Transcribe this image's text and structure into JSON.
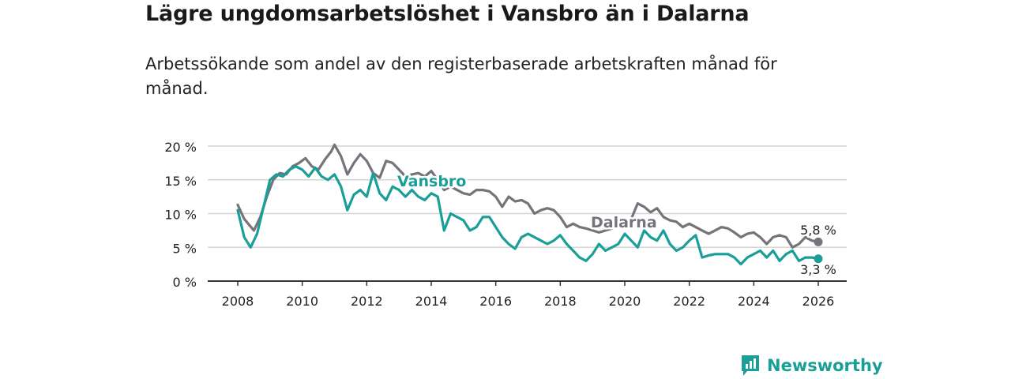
{
  "title": "Lägre ungdomsarbetslöshet i Vansbro än i Dalarna",
  "subtitle": "Arbetssökande som andel av den registerbaserade arbetskraften månad för månad.",
  "brand": "Newsworthy",
  "colors": {
    "vansbro": "#1a9e98",
    "dalarna": "#76737a",
    "grid": "#d4d4d4",
    "axis": "#333333"
  },
  "chart_data": {
    "type": "line",
    "title": "Lägre ungdomsarbetslöshet i Vansbro än i Dalarna",
    "xlabel": "",
    "ylabel": "",
    "xlim": [
      2007.8,
      2026.5
    ],
    "ylim": [
      0,
      20
    ],
    "x_ticks": [
      2008,
      2010,
      2012,
      2014,
      2016,
      2018,
      2020,
      2022,
      2024,
      2026
    ],
    "x_tick_labels": [
      "2008",
      "2010",
      "2012",
      "2014",
      "2016",
      "2018",
      "2020",
      "2022",
      "2024",
      "2026"
    ],
    "y_ticks": [
      0,
      5,
      10,
      15,
      20
    ],
    "y_tick_labels": [
      "0 %",
      "5 %",
      "10 %",
      "15 %",
      "20 %"
    ],
    "series": [
      {
        "name": "Dalarna",
        "label": "Dalarna",
        "end_label": "5,8 %",
        "x": [
          2008.0,
          2008.2,
          2008.5,
          2008.7,
          2008.9,
          2009.1,
          2009.3,
          2009.5,
          2009.7,
          2009.9,
          2010.1,
          2010.3,
          2010.5,
          2010.7,
          2010.9,
          2011.0,
          2011.2,
          2011.4,
          2011.6,
          2011.8,
          2012.0,
          2012.2,
          2012.4,
          2012.6,
          2012.8,
          2013.0,
          2013.2,
          2013.4,
          2013.6,
          2013.8,
          2014.0,
          2014.2,
          2014.4,
          2014.6,
          2014.8,
          2015.0,
          2015.2,
          2015.4,
          2015.6,
          2015.8,
          2016.0,
          2016.2,
          2016.4,
          2016.6,
          2016.8,
          2017.0,
          2017.2,
          2017.4,
          2017.6,
          2017.8,
          2018.0,
          2018.2,
          2018.4,
          2018.6,
          2018.8,
          2019.0,
          2019.2,
          2019.4,
          2019.6,
          2019.8,
          2020.0,
          2020.2,
          2020.4,
          2020.6,
          2020.8,
          2021.0,
          2021.2,
          2021.4,
          2021.6,
          2021.8,
          2022.0,
          2022.2,
          2022.4,
          2022.6,
          2022.8,
          2023.0,
          2023.2,
          2023.4,
          2023.6,
          2023.8,
          2024.0,
          2024.2,
          2024.4,
          2024.6,
          2024.8,
          2025.0,
          2025.2,
          2025.4,
          2025.6,
          2025.8,
          2026.0
        ],
        "values": [
          11.3,
          9.2,
          7.5,
          9.5,
          12.5,
          15.0,
          16.0,
          15.8,
          17.0,
          17.5,
          18.2,
          17.0,
          16.5,
          18.0,
          19.2,
          20.2,
          18.5,
          15.8,
          17.5,
          18.8,
          17.8,
          16.0,
          15.3,
          17.8,
          17.5,
          16.5,
          15.5,
          15.8,
          16.0,
          15.5,
          16.3,
          15.0,
          13.5,
          14.0,
          13.5,
          13.0,
          12.8,
          13.5,
          13.5,
          13.3,
          12.5,
          11.0,
          12.5,
          11.8,
          12.0,
          11.5,
          10.0,
          10.5,
          10.8,
          10.5,
          9.5,
          8.0,
          8.5,
          8.0,
          7.8,
          7.5,
          7.2,
          7.5,
          7.8,
          8.2,
          8.5,
          9.2,
          11.5,
          11.0,
          10.2,
          10.8,
          9.5,
          9.0,
          8.8,
          8.0,
          8.5,
          8.0,
          7.5,
          7.0,
          7.5,
          8.0,
          7.8,
          7.2,
          6.5,
          7.0,
          7.2,
          6.5,
          5.5,
          6.5,
          6.8,
          6.5,
          5.0,
          5.5,
          6.5,
          6.0,
          5.8
        ]
      },
      {
        "name": "Vansbro",
        "label": "Vansbro",
        "end_label": "3,3 %",
        "x": [
          2008.0,
          2008.2,
          2008.4,
          2008.6,
          2008.8,
          2009.0,
          2009.2,
          2009.4,
          2009.6,
          2009.8,
          2010.0,
          2010.2,
          2010.4,
          2010.6,
          2010.8,
          2011.0,
          2011.2,
          2011.4,
          2011.6,
          2011.8,
          2012.0,
          2012.2,
          2012.4,
          2012.6,
          2012.8,
          2013.0,
          2013.2,
          2013.4,
          2013.6,
          2013.8,
          2014.0,
          2014.2,
          2014.4,
          2014.6,
          2014.8,
          2015.0,
          2015.2,
          2015.4,
          2015.6,
          2015.8,
          2016.0,
          2016.2,
          2016.4,
          2016.6,
          2016.8,
          2017.0,
          2017.2,
          2017.4,
          2017.6,
          2017.8,
          2018.0,
          2018.2,
          2018.4,
          2018.6,
          2018.8,
          2019.0,
          2019.2,
          2019.4,
          2019.6,
          2019.8,
          2020.0,
          2020.2,
          2020.4,
          2020.6,
          2020.8,
          2021.0,
          2021.2,
          2021.4,
          2021.6,
          2021.8,
          2022.0,
          2022.2,
          2022.4,
          2022.6,
          2022.8,
          2023.0,
          2023.2,
          2023.4,
          2023.6,
          2023.8,
          2024.0,
          2024.2,
          2024.4,
          2024.6,
          2024.8,
          2025.0,
          2025.2,
          2025.4,
          2025.6,
          2025.8,
          2026.0
        ],
        "values": [
          10.5,
          6.5,
          5.0,
          7.0,
          11.0,
          15.0,
          15.8,
          15.5,
          16.5,
          17.0,
          16.5,
          15.5,
          16.8,
          15.5,
          15.0,
          15.8,
          14.0,
          10.5,
          12.8,
          13.5,
          12.5,
          16.0,
          13.0,
          12.0,
          14.0,
          13.5,
          12.5,
          13.5,
          12.5,
          12.0,
          13.0,
          12.5,
          7.5,
          10.0,
          9.5,
          9.0,
          7.5,
          8.0,
          9.5,
          9.5,
          8.0,
          6.5,
          5.5,
          4.8,
          6.5,
          7.0,
          6.5,
          6.0,
          5.5,
          6.0,
          6.8,
          5.5,
          4.5,
          3.5,
          3.0,
          4.0,
          5.5,
          4.5,
          5.0,
          5.5,
          7.0,
          6.0,
          5.0,
          7.5,
          6.5,
          6.0,
          7.5,
          5.5,
          4.5,
          5.0,
          6.0,
          6.8,
          3.5,
          3.8,
          4.0,
          4.0,
          4.0,
          3.5,
          2.5,
          3.5,
          4.0,
          4.5,
          3.5,
          4.5,
          3.0,
          4.0,
          4.5,
          3.0,
          3.5,
          3.5,
          3.3
        ]
      }
    ]
  }
}
